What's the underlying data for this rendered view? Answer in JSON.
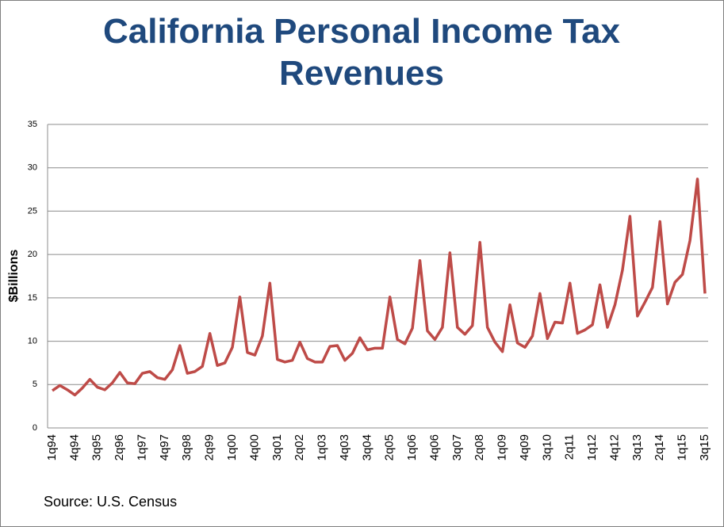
{
  "chart_data": {
    "type": "line",
    "title": "California Personal Income Tax Revenues",
    "y_label": "$Billions",
    "source": "Source: U.S. Census",
    "categories": [
      "1q94",
      null,
      null,
      "4q94",
      null,
      null,
      "3q95",
      null,
      null,
      "2q96",
      null,
      null,
      "1q97",
      null,
      null,
      "4q97",
      null,
      null,
      "3q98",
      null,
      null,
      "2q99",
      null,
      null,
      "1q00",
      null,
      null,
      "4q00",
      null,
      null,
      "3q01",
      null,
      null,
      "2q02",
      null,
      null,
      "1q03",
      null,
      null,
      "4q03",
      null,
      null,
      "3q04",
      null,
      null,
      "2q05",
      null,
      null,
      "1q06",
      null,
      null,
      "4q06",
      null,
      null,
      "3q07",
      null,
      null,
      "2q08",
      null,
      null,
      "1q09",
      null,
      null,
      "4q09",
      null,
      null,
      "3q10",
      null,
      null,
      "2q11",
      null,
      null,
      "1q12",
      null,
      null,
      "4q12",
      null,
      null,
      "3q13",
      null,
      null,
      "2q14",
      null,
      null,
      "1q15",
      null,
      null,
      "3q15"
    ],
    "values": [
      4.3,
      4.9,
      4.4,
      3.8,
      4.6,
      5.6,
      4.7,
      4.4,
      5.2,
      6.4,
      5.2,
      5.1,
      6.3,
      6.5,
      5.8,
      5.6,
      6.7,
      9.5,
      6.3,
      6.5,
      7.1,
      10.9,
      7.2,
      7.5,
      9.3,
      15.1,
      8.7,
      8.4,
      10.6,
      16.7,
      7.9,
      7.6,
      7.8,
      9.9,
      8.0,
      7.6,
      7.6,
      9.4,
      9.5,
      7.8,
      8.6,
      10.4,
      9.0,
      9.2,
      9.2,
      15.1,
      10.2,
      9.7,
      11.5,
      19.3,
      11.2,
      10.2,
      11.6,
      20.2,
      11.6,
      10.8,
      11.8,
      21.4,
      11.6,
      9.9,
      8.8,
      14.2,
      9.8,
      9.3,
      10.6,
      15.5,
      10.3,
      12.2,
      12.1,
      16.7,
      10.9,
      11.3,
      11.9,
      16.5,
      11.6,
      14.2,
      18.2,
      24.4,
      12.9,
      14.5,
      16.2,
      23.8,
      14.3,
      16.8,
      17.7,
      21.6,
      28.7,
      15.5
    ],
    "color": "#be4b48",
    "ylim": [
      0,
      35
    ],
    "yticks": [
      0,
      5,
      10,
      15,
      20,
      25,
      30,
      35
    ],
    "grid": true
  }
}
